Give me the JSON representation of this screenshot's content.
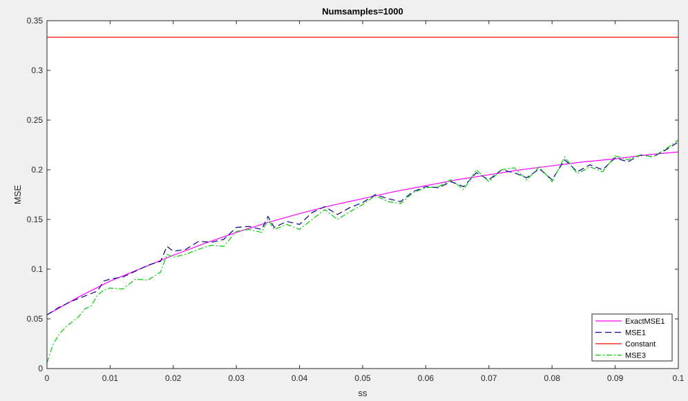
{
  "chart_data": {
    "type": "line",
    "title": "Numsamples=1000",
    "xlabel": "ss",
    "ylabel": "MSE",
    "xlim": [
      0,
      0.1
    ],
    "ylim": [
      0,
      0.35
    ],
    "x_ticks": [
      {
        "value": 0,
        "label": "0"
      },
      {
        "value": 0.01,
        "label": "0.01"
      },
      {
        "value": 0.02,
        "label": "0.02"
      },
      {
        "value": 0.03,
        "label": "0.03"
      },
      {
        "value": 0.04,
        "label": "0.04"
      },
      {
        "value": 0.05,
        "label": "0.05"
      },
      {
        "value": 0.06,
        "label": "0.06"
      },
      {
        "value": 0.07,
        "label": "0.07"
      },
      {
        "value": 0.08,
        "label": "0.08"
      },
      {
        "value": 0.09,
        "label": "0.09"
      },
      {
        "value": 0.1,
        "label": "0.1"
      }
    ],
    "y_ticks": [
      {
        "value": 0,
        "label": "0"
      },
      {
        "value": 0.05,
        "label": "0.05"
      },
      {
        "value": 0.1,
        "label": "0.1"
      },
      {
        "value": 0.15,
        "label": "0.15"
      },
      {
        "value": 0.2,
        "label": "0.2"
      },
      {
        "value": 0.25,
        "label": "0.25"
      },
      {
        "value": 0.3,
        "label": "0.3"
      },
      {
        "value": 0.35,
        "label": "0.35"
      }
    ],
    "grid": false,
    "legend_position": "bottom-right",
    "series": [
      {
        "name": "ExactMSE1",
        "color": "#ff00ff",
        "style": "solid",
        "x": [
          0,
          0.005,
          0.01,
          0.015,
          0.02,
          0.025,
          0.03,
          0.035,
          0.04,
          0.045,
          0.05,
          0.055,
          0.06,
          0.065,
          0.07,
          0.075,
          0.08,
          0.085,
          0.09,
          0.095,
          0.1
        ],
        "y": [
          0.054,
          0.072,
          0.088,
          0.101,
          0.114,
          0.126,
          0.137,
          0.147,
          0.156,
          0.164,
          0.171,
          0.178,
          0.184,
          0.19,
          0.195,
          0.2,
          0.204,
          0.208,
          0.211,
          0.215,
          0.218
        ]
      },
      {
        "name": "MSE1",
        "color": "#00008b",
        "style": "dashed",
        "x": [
          0,
          0.002,
          0.004,
          0.006,
          0.008,
          0.009,
          0.01,
          0.012,
          0.014,
          0.016,
          0.018,
          0.019,
          0.02,
          0.022,
          0.024,
          0.026,
          0.028,
          0.03,
          0.032,
          0.034,
          0.035,
          0.036,
          0.038,
          0.04,
          0.042,
          0.044,
          0.046,
          0.048,
          0.05,
          0.052,
          0.054,
          0.056,
          0.058,
          0.06,
          0.062,
          0.064,
          0.066,
          0.068,
          0.07,
          0.072,
          0.074,
          0.076,
          0.078,
          0.08,
          0.082,
          0.084,
          0.086,
          0.088,
          0.09,
          0.092,
          0.094,
          0.096,
          0.098,
          0.1
        ],
        "y": [
          0.054,
          0.062,
          0.068,
          0.073,
          0.078,
          0.088,
          0.09,
          0.092,
          0.098,
          0.104,
          0.108,
          0.123,
          0.118,
          0.12,
          0.128,
          0.127,
          0.13,
          0.142,
          0.143,
          0.14,
          0.153,
          0.142,
          0.148,
          0.145,
          0.157,
          0.163,
          0.155,
          0.162,
          0.167,
          0.175,
          0.171,
          0.168,
          0.178,
          0.183,
          0.182,
          0.188,
          0.183,
          0.197,
          0.19,
          0.2,
          0.197,
          0.192,
          0.201,
          0.19,
          0.21,
          0.198,
          0.205,
          0.2,
          0.212,
          0.208,
          0.215,
          0.213,
          0.22,
          0.228
        ]
      },
      {
        "name": "Constant",
        "color": "#ff0000",
        "style": "solid",
        "x": [
          0,
          0.1
        ],
        "y": [
          0.3333,
          0.3333
        ]
      },
      {
        "name": "MSE3",
        "color": "#00cc00",
        "style": "dashdot",
        "x": [
          0,
          0.001,
          0.002,
          0.003,
          0.004,
          0.005,
          0.006,
          0.007,
          0.008,
          0.009,
          0.01,
          0.012,
          0.014,
          0.016,
          0.018,
          0.019,
          0.02,
          0.022,
          0.024,
          0.026,
          0.028,
          0.03,
          0.032,
          0.034,
          0.035,
          0.036,
          0.038,
          0.04,
          0.042,
          0.044,
          0.046,
          0.048,
          0.05,
          0.052,
          0.054,
          0.056,
          0.058,
          0.06,
          0.062,
          0.064,
          0.066,
          0.068,
          0.07,
          0.072,
          0.074,
          0.076,
          0.078,
          0.08,
          0.082,
          0.084,
          0.086,
          0.088,
          0.09,
          0.092,
          0.094,
          0.096,
          0.098,
          0.1
        ],
        "y": [
          0.006,
          0.025,
          0.035,
          0.042,
          0.047,
          0.052,
          0.06,
          0.063,
          0.074,
          0.079,
          0.081,
          0.08,
          0.09,
          0.089,
          0.097,
          0.115,
          0.112,
          0.115,
          0.12,
          0.124,
          0.123,
          0.138,
          0.14,
          0.137,
          0.15,
          0.14,
          0.145,
          0.14,
          0.15,
          0.16,
          0.15,
          0.158,
          0.165,
          0.174,
          0.168,
          0.166,
          0.177,
          0.182,
          0.183,
          0.19,
          0.18,
          0.2,
          0.188,
          0.2,
          0.202,
          0.19,
          0.203,
          0.188,
          0.213,
          0.196,
          0.203,
          0.198,
          0.214,
          0.21,
          0.215,
          0.213,
          0.221,
          0.23
        ]
      }
    ]
  }
}
